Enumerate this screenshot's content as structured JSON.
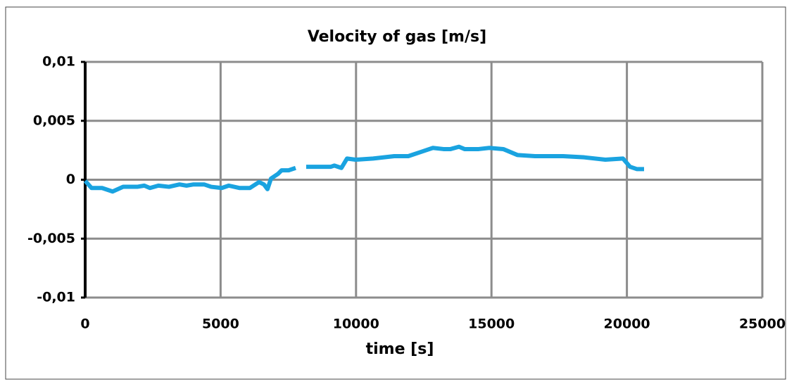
{
  "chart_data": {
    "type": "line",
    "title": "Velocity of gas [m/s]",
    "xlabel": "time [s]",
    "x": [
      0,
      234,
      624,
      1013,
      1403,
      1923,
      2183,
      2391,
      2703,
      3093,
      3482,
      3742,
      4002,
      4392,
      4652,
      5042,
      5301,
      5691,
      6081,
      6419,
      6600,
      6731,
      6861,
      7121,
      7251,
      7511,
      7770,
      8100,
      8160,
      8550,
      9070,
      9200,
      9460,
      9668,
      9980,
      10629,
      11409,
      11929,
      12448,
      12838,
      13228,
      13488,
      13800,
      14008,
      14527,
      14917,
      15437,
      15956,
      16606,
      17646,
      18425,
      19205,
      19854,
      20114,
      20374,
      20634
    ],
    "series": [
      {
        "name": "Velocity of gas",
        "color": "#1aa3e0",
        "values": [
          -0.0001,
          -0.0007,
          -0.0007,
          -0.001,
          -0.0006,
          -0.0006,
          -0.0005,
          -0.0007,
          -0.0005,
          -0.0006,
          -0.0004,
          -0.0005,
          -0.0004,
          -0.0004,
          -0.0006,
          -0.0007,
          -0.0005,
          -0.0007,
          -0.0007,
          -0.0002,
          -0.0004,
          -0.0008,
          0.0001,
          0.0005,
          0.0008,
          0.0008,
          0.001,
          null,
          0.0011,
          0.0011,
          0.0011,
          0.0012,
          0.001,
          0.0018,
          0.0017,
          0.0018,
          0.002,
          0.002,
          0.0024,
          0.0027,
          0.0026,
          0.0026,
          0.0028,
          0.0026,
          0.0026,
          0.0027,
          0.0026,
          0.0021,
          0.002,
          0.002,
          0.0019,
          0.0017,
          0.0018,
          0.0011,
          0.0009,
          0.0009
        ]
      }
    ],
    "xlim": [
      0,
      25000
    ],
    "xticks": [
      0,
      5000,
      10000,
      15000,
      20000,
      25000
    ],
    "ylim": [
      -0.01,
      0.01
    ],
    "yticks": [
      {
        "value": -0.01,
        "label": "-0,01"
      },
      {
        "value": -0.005,
        "label": "-0,005"
      },
      0,
      {
        "value": 0.005,
        "label": "0,005"
      },
      {
        "value": 0.01,
        "label": "0,01"
      }
    ],
    "grid": true
  }
}
